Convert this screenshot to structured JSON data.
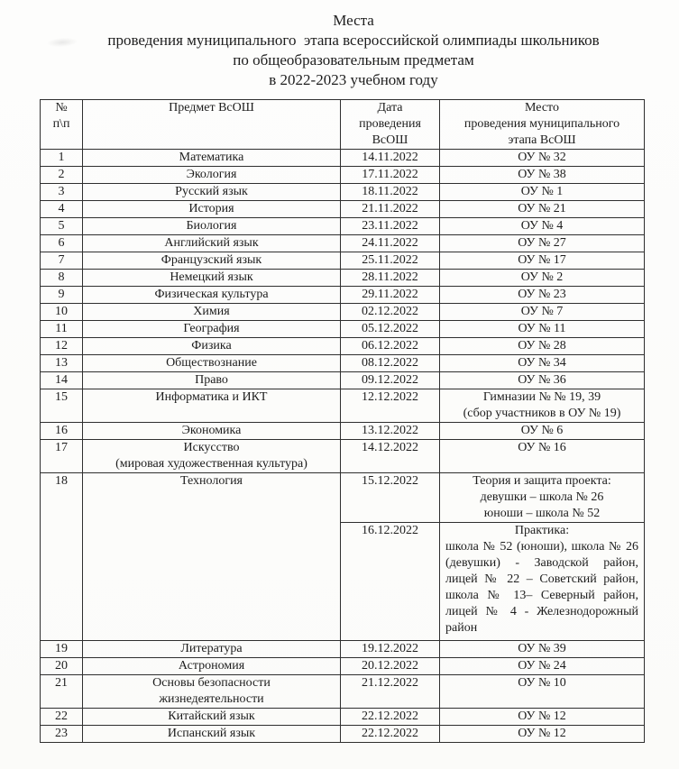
{
  "title": {
    "lines": [
      "Места",
      "проведения муниципального  этапа всероссийской олимпиады школьников",
      "по общеобразовательным предметам",
      "в 2022-2023 учебном году"
    ]
  },
  "table": {
    "headers": {
      "num": [
        "№",
        "п\\п"
      ],
      "subject": [
        "Предмет ВсОШ"
      ],
      "date": [
        "Дата",
        "проведения",
        "ВсОШ"
      ],
      "place": [
        "Место",
        "проведения муниципального",
        "этапа ВсОШ"
      ]
    },
    "rows": [
      {
        "num": "1",
        "subject": "Математика",
        "date": "14.11.2022",
        "place": "ОУ № 32"
      },
      {
        "num": "2",
        "subject": "Экология",
        "date": "17.11.2022",
        "place": "ОУ № 38"
      },
      {
        "num": "3",
        "subject": "Русский язык",
        "date": "18.11.2022",
        "place": "ОУ № 1"
      },
      {
        "num": "4",
        "subject": "История",
        "date": "21.11.2022",
        "place": "ОУ № 21"
      },
      {
        "num": "5",
        "subject": "Биология",
        "date": "23.11.2022",
        "place": "ОУ № 4"
      },
      {
        "num": "6",
        "subject": "Английский язык",
        "date": "24.11.2022",
        "place": "ОУ № 27"
      },
      {
        "num": "7",
        "subject": "Французский язык",
        "date": "25.11.2022",
        "place": "ОУ № 17"
      },
      {
        "num": "8",
        "subject": "Немецкий язык",
        "date": "28.11.2022",
        "place": "ОУ № 2"
      },
      {
        "num": "9",
        "subject": "Физическая культура",
        "date": "29.11.2022",
        "place": "ОУ № 23"
      },
      {
        "num": "10",
        "subject": "Химия",
        "date": "02.12.2022",
        "place": "ОУ № 7"
      },
      {
        "num": "11",
        "subject": "География",
        "date": "05.12.2022",
        "place": "ОУ № 11"
      },
      {
        "num": "12",
        "subject": "Физика",
        "date": "06.12.2022",
        "place": "ОУ № 28"
      },
      {
        "num": "13",
        "subject": "Обществознание",
        "date": "08.12.2022",
        "place": "ОУ № 34"
      },
      {
        "num": "14",
        "subject": "Право",
        "date": "09.12.2022",
        "place": "ОУ № 36"
      },
      {
        "num": "15",
        "subject": "Информатика и ИКТ",
        "date": "12.12.2022",
        "place": [
          "Гимназии № № 19, 39",
          "(сбор участников в ОУ № 19)"
        ]
      },
      {
        "num": "16",
        "subject": "Экономика",
        "date": "13.12.2022",
        "place": "ОУ № 6"
      },
      {
        "num": "17",
        "subject": [
          "Искусство",
          "(мировая художественная культура)"
        ],
        "date": "14.12.2022",
        "place": "ОУ № 16"
      },
      {
        "num": "18",
        "subject": "Технология",
        "sub_rows": [
          {
            "date": "15.12.2022",
            "place": [
              "Теория и защита проекта:",
              "девушки – школа № 26",
              "юноши – школа № 52"
            ]
          },
          {
            "date": "16.12.2022",
            "place_title": "Практика:",
            "place_body": "школа № 52 (юноши), школа № 26 (девушки) - Заводской район, лицей № 22 – Советский район, школа № 13– Северный район, лицей № 4 - Железнодорожный район"
          }
        ]
      },
      {
        "num": "19",
        "subject": "Литература",
        "date": "19.12.2022",
        "place": "ОУ № 39"
      },
      {
        "num": "20",
        "subject": "Астрономия",
        "date": "20.12.2022",
        "place": "ОУ № 24"
      },
      {
        "num": "21",
        "subject": [
          "Основы безопасности",
          "жизнедеятельности"
        ],
        "date": "21.12.2022",
        "place": "ОУ № 10"
      },
      {
        "num": "22",
        "subject": "Китайский язык",
        "date": "22.12.2022",
        "place": "ОУ № 12"
      },
      {
        "num": "23",
        "subject": "Испанский язык",
        "date": "22.12.2022",
        "place": "ОУ № 12"
      }
    ]
  }
}
